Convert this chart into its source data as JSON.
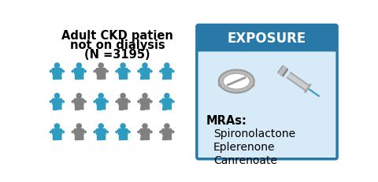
{
  "title_line1": "Adult CKD patien",
  "title_line2": "not on dialysis",
  "title_line3": "(N =3195)",
  "exposure_label": "EXPOSURE",
  "mra_label": "MRAs:",
  "drugs": [
    "Spironolactone",
    "Eplerenone",
    "Canrenoate"
  ],
  "teal_color": "#2E9CC0",
  "gray_color": "#808080",
  "box_bg": "#D6EAF8",
  "box_border": "#2878A8",
  "header_bg": "#2878A8",
  "header_text": "#FFFFFF",
  "bg_color": "#FFFFFF",
  "figure_width": 4.8,
  "figure_height": 2.31,
  "person_pattern": [
    [
      1,
      1,
      0,
      1,
      1,
      1
    ],
    [
      1,
      0,
      1,
      0,
      0,
      1
    ],
    [
      1,
      0,
      1,
      1,
      0,
      0
    ]
  ]
}
